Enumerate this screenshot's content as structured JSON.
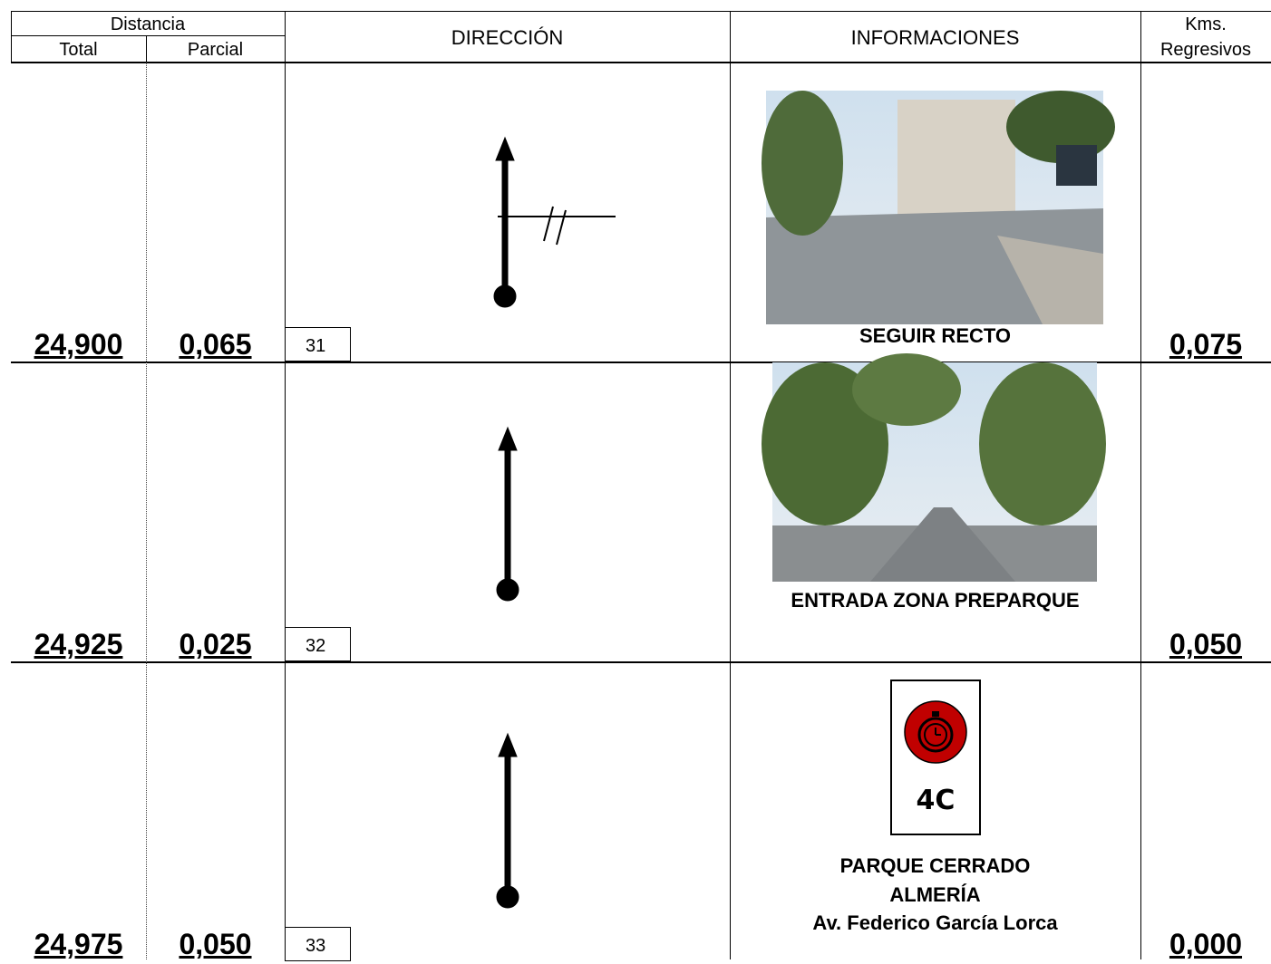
{
  "header": {
    "distancia": "Distancia",
    "total": "Total",
    "parcial": "Parcial",
    "direccion": "DIRECCIÓN",
    "informaciones": "INFORMACIONES",
    "kms": "Kms.",
    "regresivos": "Regresivos"
  },
  "rows": [
    {
      "total": "24,900",
      "parcial": "0,065",
      "number": "31",
      "info": [
        "SEGUIR RECTO"
      ],
      "kms": "0,075"
    },
    {
      "total": "24,925",
      "parcial": "0,025",
      "number": "32",
      "info": [
        "ENTRADA ZONA PREPARQUE"
      ],
      "kms": "0,050"
    },
    {
      "total": "24,975",
      "parcial": "0,050",
      "number": "33",
      "sign": "4C",
      "info": [
        "PARQUE CERRADO",
        "ALMERÍA",
        "Av. Federico García Lorca"
      ],
      "kms": "0,000"
    }
  ]
}
